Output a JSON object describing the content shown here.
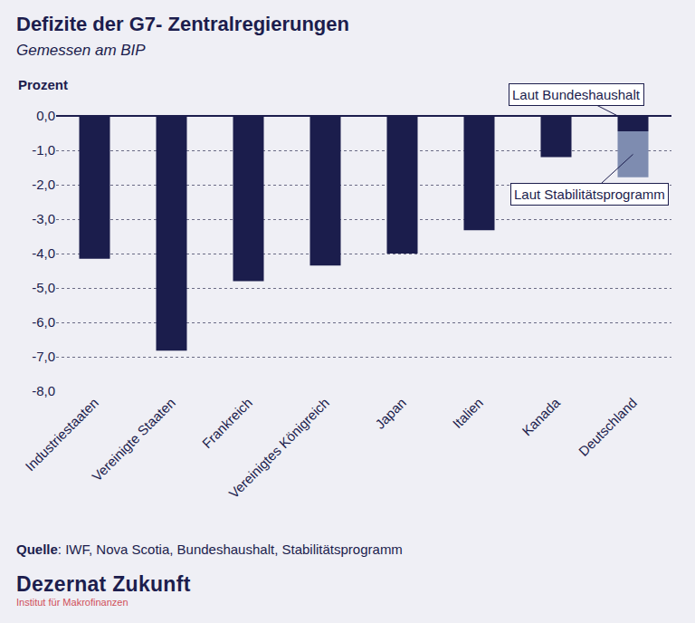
{
  "chart_data": {
    "type": "bar",
    "title": "Defizite der G7- Zentralregierungen",
    "subtitle": "Gemessen am BIP",
    "y_label": "Prozent",
    "categories": [
      "Industriestaaten",
      "Vereinigte Staaten",
      "Frankreich",
      "Vereinigtes Königreich",
      "Japan",
      "Italien",
      "Kanada",
      "Deutschland"
    ],
    "series": [
      {
        "color": "#1b1d4c",
        "values": [
          -4.15,
          -6.82,
          -4.8,
          -4.35,
          -4.0,
          -3.32,
          -1.2,
          -0.45
        ]
      },
      {
        "color": "#7e8cb0",
        "values": [
          null,
          null,
          null,
          null,
          null,
          null,
          null,
          -1.33
        ]
      }
    ],
    "stacked": true,
    "annotations": [
      "Laut Bundeshaushalt",
      "Laut Stabilitätsprogramm"
    ],
    "ylim": [
      -8,
      0
    ],
    "yticks": [
      {
        "value": -8,
        "label": "-8,0"
      },
      {
        "value": -7,
        "label": "-7,0"
      },
      {
        "value": -6,
        "label": "-6,0"
      },
      {
        "value": -5,
        "label": "-5,0"
      },
      {
        "value": -4,
        "label": "-4,0"
      },
      {
        "value": -3,
        "label": "-3,0"
      },
      {
        "value": -2,
        "label": "-2,0"
      },
      {
        "value": -1,
        "label": "-1,0"
      },
      {
        "value": 0,
        "label": "0,0"
      }
    ],
    "grid": true,
    "source": "Quelle: IWF, Nova Scotia, Bundeshaushalt, Stabilitätsprogramm",
    "brand": "Dezernat Zukunft",
    "brand_subtitle": "Institut für Makrofinanzen"
  }
}
